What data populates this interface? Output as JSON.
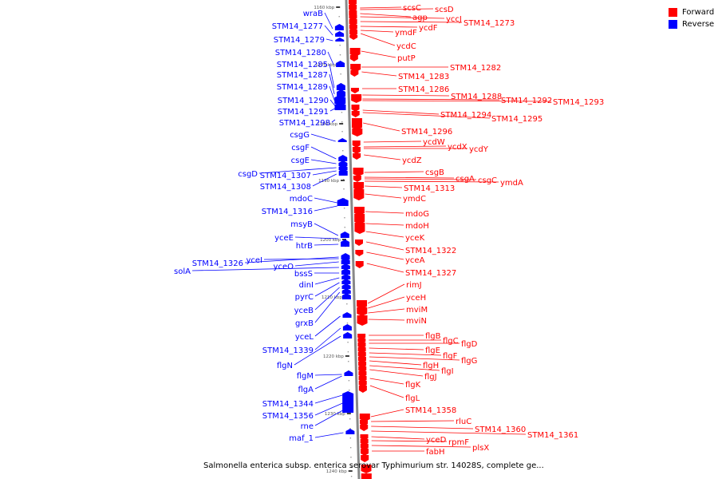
{
  "chart_data": {
    "type": "genome-map",
    "ticks": [
      "1160 kbp",
      "1170 kbp",
      "1180 kbp",
      "1190 kbp",
      "1200 kbp",
      "1210 kbp",
      "1220 kbp",
      "1230 kbp",
      "1240 kbp"
    ],
    "forward_labels": [
      "scsC",
      "scsD",
      "agp",
      "yccJ",
      "STM14_1273",
      "ycdF",
      "ymdF",
      "ycdC",
      "putP",
      "STM14_1282",
      "STM14_1283",
      "STM14_1286",
      "STM14_1288",
      "STM14_1292",
      "STM14_1293",
      "STM14_1294",
      "STM14_1295",
      "STM14_1296",
      "ycdW",
      "ycdX",
      "ycdY",
      "ycdZ",
      "csgB",
      "csgA",
      "csgC",
      "ymdA",
      "STM14_1313",
      "ymdC",
      "mdoG",
      "mdoH",
      "yceK",
      "STM14_1322",
      "yceA",
      "STM14_1327",
      "rimJ",
      "yceH",
      "mviM",
      "mviN",
      "flgB",
      "flgC",
      "flgD",
      "flgE",
      "flgF",
      "flgG",
      "flgH",
      "flgI",
      "flgJ",
      "flgK",
      "flgL",
      "STM14_1358",
      "rluC",
      "STM14_1360",
      "STM14_1361",
      "yceD",
      "rpmF",
      "plsX",
      "fabH"
    ],
    "reverse_labels": [
      "wraB",
      "STM14_1277",
      "STM14_1279",
      "STM14_1280",
      "STM14_1285",
      "STM14_1287",
      "STM14_1289",
      "STM14_1290",
      "STM14_1291",
      "STM14_1298",
      "csgG",
      "csgF",
      "csgE",
      "csgD",
      "STM14_1307",
      "STM14_1308",
      "mdoC",
      "STM14_1316",
      "msyB",
      "yceE",
      "htrB",
      "STM14_1326",
      "yceI",
      "yceO",
      "solA",
      "bssS",
      "dinI",
      "pyrC",
      "yceB",
      "grxB",
      "yceL",
      "STM14_1339",
      "flgN",
      "flgM",
      "flgA",
      "STM14_1344",
      "STM14_1356",
      "rne",
      "maf_1"
    ]
  },
  "legend": {
    "forward_label": "Forward",
    "reverse_label": "Reverse",
    "forward_color": "#ff0000",
    "reverse_color": "#0000ff"
  },
  "caption": "Salmonella enterica subsp. enterica serovar Typhimurium str. 14028S, complete ge..."
}
